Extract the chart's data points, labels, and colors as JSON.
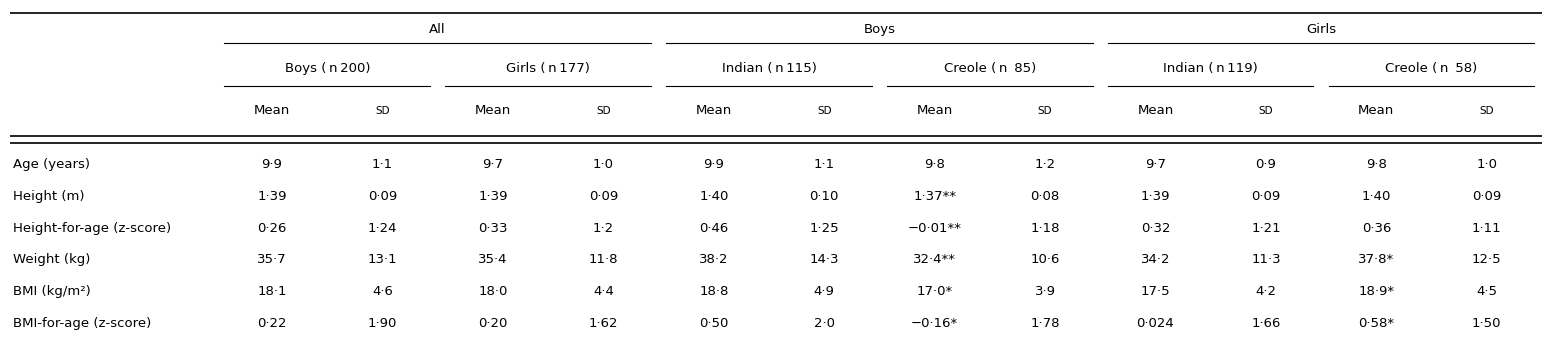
{
  "col_header_row1": [
    "",
    "All",
    "",
    "",
    "",
    "Boys",
    "",
    "",
    "",
    "Girls",
    "",
    "",
    ""
  ],
  "col_header_row2": [
    "",
    "Boys (n 200)",
    "",
    "Girls (n 177)",
    "",
    "Indian (n 115)",
    "",
    "Creole (n 85)",
    "",
    "Indian (n 119)",
    "",
    "Creole (n 58)",
    ""
  ],
  "col_header_row3": [
    "",
    "Mean",
    "SD",
    "Mean",
    "SD",
    "Mean",
    "SD",
    "Mean",
    "SD",
    "Mean",
    "SD",
    "Mean",
    "SD"
  ],
  "rows": [
    [
      "Age (years)",
      "9·9",
      "1·1",
      "9·7",
      "1·0",
      "9·9",
      "1·1",
      "9·8",
      "1·2",
      "9·7",
      "0·9",
      "9·8",
      "1·0"
    ],
    [
      "Height (m)",
      "1·39",
      "0·09",
      "1·39",
      "0·09",
      "1·40",
      "0·10",
      "1·37**",
      "0·08",
      "1·39",
      "0·09",
      "1·40",
      "0·09"
    ],
    [
      "Height-for-age (z-score)",
      "0·26",
      "1·24",
      "0·33",
      "1·2",
      "0·46",
      "1·25",
      "−0·01**",
      "1·18",
      "0·32",
      "1·21",
      "0·36",
      "1·11"
    ],
    [
      "Weight (kg)",
      "35·7",
      "13·1",
      "35·4",
      "11·8",
      "38·2",
      "14·3",
      "32·4**",
      "10·6",
      "34·2",
      "11·3",
      "37·8*",
      "12·5"
    ],
    [
      "BMI (kg/m²)",
      "18·1",
      "4·6",
      "18·0",
      "4·4",
      "18·8",
      "4·9",
      "17·0*",
      "3·9",
      "17·5",
      "4·2",
      "18·9*",
      "4·5"
    ],
    [
      "BMI-for-age (z-score)",
      "0·22",
      "1·90",
      "0·20",
      "1·62",
      "0·50",
      "2·0",
      "−0·16*",
      "1·78",
      "0·024",
      "1·66",
      "0·58*",
      "1·50"
    ]
  ],
  "all_span": [
    1,
    4
  ],
  "boys_span": [
    5,
    8
  ],
  "girls_span": [
    9,
    12
  ],
  "boys200_span": [
    1,
    2
  ],
  "girls177_span": [
    3,
    4
  ],
  "indian115_span": [
    5,
    6
  ],
  "creole85_span": [
    7,
    8
  ],
  "indian119_span": [
    9,
    10
  ],
  "creole58_span": [
    11,
    12
  ],
  "bg_color": "#ffffff",
  "text_color": "#000000",
  "fontsize": 9.5
}
